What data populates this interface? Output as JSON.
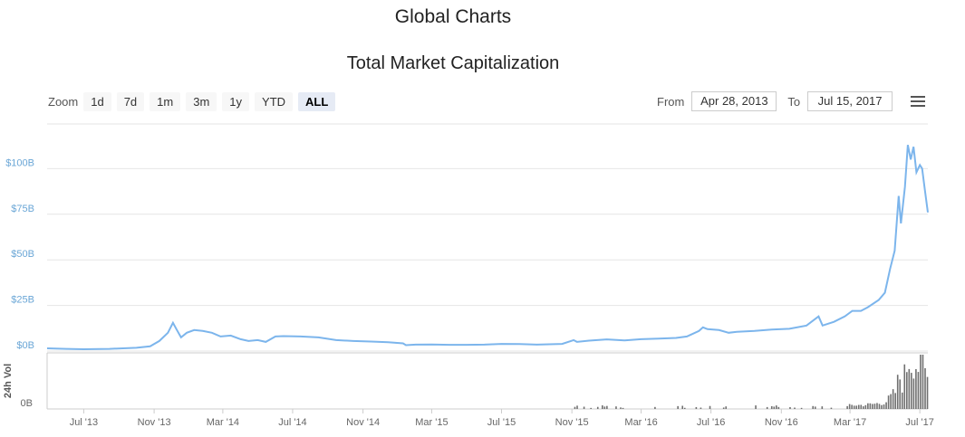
{
  "page": {
    "title": "Global Charts"
  },
  "toolbar": {
    "zoom_label": "Zoom",
    "zoom_buttons": [
      "1d",
      "7d",
      "1m",
      "3m",
      "1y",
      "YTD",
      "ALL"
    ],
    "active_zoom": "ALL",
    "from_label": "From",
    "from_value": "Apr 28, 2013",
    "to_label": "To",
    "to_value": "Jul 15, 2017",
    "menu_icon": "hamburger-menu-icon"
  },
  "chart_data": {
    "type": "line",
    "title": "Total Market Capitalization",
    "line_color": "#7cb5ec",
    "volume_color": "#707070",
    "ylim": [
      0,
      120
    ],
    "y_ticks": [
      {
        "value": 0,
        "label": "$0B"
      },
      {
        "value": 25,
        "label": "$25B"
      },
      {
        "value": 50,
        "label": "$50B"
      },
      {
        "value": 75,
        "label": "$75B"
      },
      {
        "value": 100,
        "label": "$100B"
      }
    ],
    "x_ticks": [
      {
        "date": "2013-07-01",
        "label": "Jul '13"
      },
      {
        "date": "2013-11-01",
        "label": "Nov '13"
      },
      {
        "date": "2014-03-01",
        "label": "Mar '14"
      },
      {
        "date": "2014-07-01",
        "label": "Jul '14"
      },
      {
        "date": "2014-11-01",
        "label": "Nov '14"
      },
      {
        "date": "2015-03-01",
        "label": "Mar '15"
      },
      {
        "date": "2015-07-01",
        "label": "Jul '15"
      },
      {
        "date": "2015-11-01",
        "label": "Nov '15"
      },
      {
        "date": "2016-03-01",
        "label": "Mar '16"
      },
      {
        "date": "2016-07-01",
        "label": "Jul '16"
      },
      {
        "date": "2016-11-01",
        "label": "Nov '16"
      },
      {
        "date": "2017-03-01",
        "label": "Mar '17"
      },
      {
        "date": "2017-07-01",
        "label": "Jul '17"
      }
    ],
    "series": [
      {
        "values": [
          [
            "2013-04-28",
            1.5
          ],
          [
            "2013-06-01",
            1.2
          ],
          [
            "2013-07-01",
            1.0
          ],
          [
            "2013-08-15",
            1.2
          ],
          [
            "2013-10-01",
            1.8
          ],
          [
            "2013-10-25",
            2.6
          ],
          [
            "2013-11-10",
            5.5
          ],
          [
            "2013-11-25",
            10
          ],
          [
            "2013-12-04",
            15.5
          ],
          [
            "2013-12-10",
            12
          ],
          [
            "2013-12-18",
            7.5
          ],
          [
            "2013-12-28",
            10
          ],
          [
            "2014-01-10",
            11.5
          ],
          [
            "2014-01-25",
            11
          ],
          [
            "2014-02-10",
            10
          ],
          [
            "2014-02-25",
            8
          ],
          [
            "2014-03-15",
            8.5
          ],
          [
            "2014-04-01",
            6.5
          ],
          [
            "2014-04-15",
            5.5
          ],
          [
            "2014-05-01",
            6
          ],
          [
            "2014-05-15",
            5
          ],
          [
            "2014-06-01",
            8
          ],
          [
            "2014-06-15",
            8.2
          ],
          [
            "2014-07-15",
            8
          ],
          [
            "2014-08-15",
            7.5
          ],
          [
            "2014-09-15",
            6
          ],
          [
            "2014-10-15",
            5.5
          ],
          [
            "2014-11-15",
            5.2
          ],
          [
            "2014-12-15",
            4.8
          ],
          [
            "2015-01-10",
            4.2
          ],
          [
            "2015-01-15",
            3.2
          ],
          [
            "2015-02-01",
            3.5
          ],
          [
            "2015-03-01",
            3.6
          ],
          [
            "2015-04-01",
            3.4
          ],
          [
            "2015-05-01",
            3.4
          ],
          [
            "2015-06-01",
            3.5
          ],
          [
            "2015-07-01",
            3.9
          ],
          [
            "2015-08-01",
            3.8
          ],
          [
            "2015-09-01",
            3.5
          ],
          [
            "2015-10-15",
            3.9
          ],
          [
            "2015-11-04",
            6
          ],
          [
            "2015-11-10",
            5
          ],
          [
            "2015-12-01",
            5.7
          ],
          [
            "2016-01-01",
            6.4
          ],
          [
            "2016-02-01",
            5.8
          ],
          [
            "2016-03-01",
            6.5
          ],
          [
            "2016-04-01",
            6.8
          ],
          [
            "2016-05-01",
            7.2
          ],
          [
            "2016-05-20",
            8
          ],
          [
            "2016-06-10",
            11
          ],
          [
            "2016-06-17",
            13
          ],
          [
            "2016-06-25",
            12
          ],
          [
            "2016-07-15",
            11.5
          ],
          [
            "2016-08-01",
            10
          ],
          [
            "2016-08-15",
            10.5
          ],
          [
            "2016-09-15",
            11
          ],
          [
            "2016-10-15",
            11.8
          ],
          [
            "2016-11-15",
            12.2
          ],
          [
            "2016-12-15",
            14
          ],
          [
            "2017-01-05",
            19
          ],
          [
            "2017-01-12",
            14
          ],
          [
            "2017-02-01",
            16
          ],
          [
            "2017-02-20",
            19
          ],
          [
            "2017-03-05",
            22
          ],
          [
            "2017-03-20",
            22
          ],
          [
            "2017-04-01",
            24
          ],
          [
            "2017-04-20",
            28
          ],
          [
            "2017-05-01",
            32
          ],
          [
            "2017-05-10",
            45
          ],
          [
            "2017-05-18",
            55
          ],
          [
            "2017-05-25",
            85
          ],
          [
            "2017-05-29",
            70
          ],
          [
            "2017-06-05",
            90
          ],
          [
            "2017-06-10",
            113
          ],
          [
            "2017-06-15",
            105
          ],
          [
            "2017-06-20",
            112
          ],
          [
            "2017-06-25",
            98
          ],
          [
            "2017-07-01",
            102
          ],
          [
            "2017-07-05",
            100
          ],
          [
            "2017-07-10",
            88
          ],
          [
            "2017-07-15",
            76
          ]
        ]
      }
    ],
    "volume_axis": {
      "label": "24h Vol",
      "tick_label": "0B"
    }
  }
}
